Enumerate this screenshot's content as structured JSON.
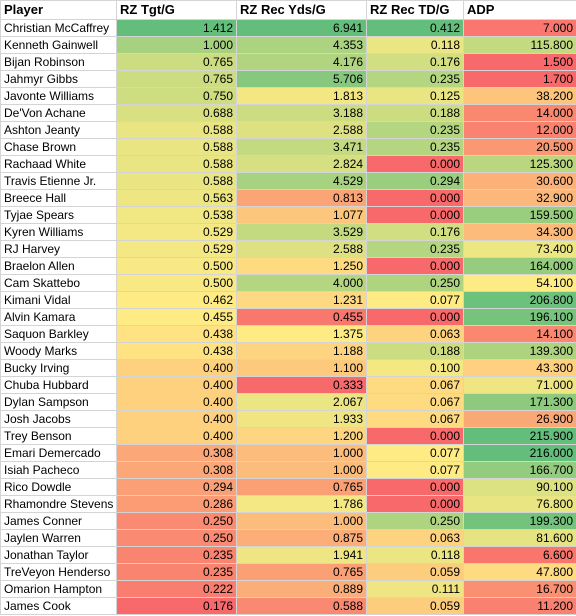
{
  "table": {
    "headers": [
      "Player",
      "RZ Tgt/G",
      "RZ Rec Yds/G",
      "RZ Rec TD/G",
      "ADP"
    ],
    "rows": [
      [
        "Christian McCaffrey",
        "1.412",
        "6.941",
        "0.412",
        "7.000"
      ],
      [
        "Kenneth Gainwell",
        "1.000",
        "4.353",
        "0.118",
        "115.800"
      ],
      [
        "Bijan Robinson",
        "0.765",
        "4.176",
        "0.176",
        "1.500"
      ],
      [
        "Jahmyr Gibbs",
        "0.765",
        "5.706",
        "0.235",
        "1.700"
      ],
      [
        "Javonte Williams",
        "0.750",
        "1.813",
        "0.125",
        "38.200"
      ],
      [
        "De'Von Achane",
        "0.688",
        "3.188",
        "0.188",
        "14.000"
      ],
      [
        "Ashton Jeanty",
        "0.588",
        "2.588",
        "0.235",
        "12.000"
      ],
      [
        "Chase Brown",
        "0.588",
        "3.471",
        "0.235",
        "20.500"
      ],
      [
        "Rachaad White",
        "0.588",
        "2.824",
        "0.000",
        "125.300"
      ],
      [
        "Travis Etienne Jr.",
        "0.588",
        "4.529",
        "0.294",
        "30.600"
      ],
      [
        "Breece Hall",
        "0.563",
        "0.813",
        "0.000",
        "32.900"
      ],
      [
        "Tyjae Spears",
        "0.538",
        "1.077",
        "0.000",
        "159.500"
      ],
      [
        "Kyren Williams",
        "0.529",
        "3.529",
        "0.176",
        "34.300"
      ],
      [
        "RJ Harvey",
        "0.529",
        "2.588",
        "0.235",
        "73.400"
      ],
      [
        "Braelon Allen",
        "0.500",
        "1.250",
        "0.000",
        "164.000"
      ],
      [
        "Cam Skattebo",
        "0.500",
        "4.000",
        "0.250",
        "54.100"
      ],
      [
        "Kimani Vidal",
        "0.462",
        "1.231",
        "0.077",
        "206.800"
      ],
      [
        "Alvin Kamara",
        "0.455",
        "0.455",
        "0.000",
        "196.100"
      ],
      [
        "Saquon Barkley",
        "0.438",
        "1.375",
        "0.063",
        "14.100"
      ],
      [
        "Woody Marks",
        "0.438",
        "1.188",
        "0.188",
        "139.300"
      ],
      [
        "Bucky Irving",
        "0.400",
        "1.100",
        "0.100",
        "43.300"
      ],
      [
        "Chuba Hubbard",
        "0.400",
        "0.333",
        "0.067",
        "71.000"
      ],
      [
        "Dylan Sampson",
        "0.400",
        "2.067",
        "0.067",
        "171.300"
      ],
      [
        "Josh Jacobs",
        "0.400",
        "1.933",
        "0.067",
        "26.900"
      ],
      [
        "Trey Benson",
        "0.400",
        "1.200",
        "0.000",
        "215.900"
      ],
      [
        "Emari Demercado",
        "0.308",
        "1.000",
        "0.077",
        "216.000"
      ],
      [
        "Isiah Pacheco",
        "0.308",
        "1.000",
        "0.077",
        "166.700"
      ],
      [
        "Rico Dowdle",
        "0.294",
        "0.765",
        "0.000",
        "90.100"
      ],
      [
        "Rhamondre Stevens",
        "0.286",
        "1.786",
        "0.000",
        "76.800"
      ],
      [
        "James Conner",
        "0.250",
        "1.000",
        "0.250",
        "199.300"
      ],
      [
        "Jaylen Warren",
        "0.250",
        "0.875",
        "0.063",
        "81.600"
      ],
      [
        "Jonathan Taylor",
        "0.235",
        "1.941",
        "0.118",
        "6.600"
      ],
      [
        "TreVeyon Henderso",
        "0.235",
        "0.765",
        "0.059",
        "47.800"
      ],
      [
        "Omarion Hampton",
        "0.222",
        "0.889",
        "0.111",
        "16.700"
      ],
      [
        "James Cook",
        "0.176",
        "0.588",
        "0.059",
        "11.200"
      ]
    ]
  }
}
